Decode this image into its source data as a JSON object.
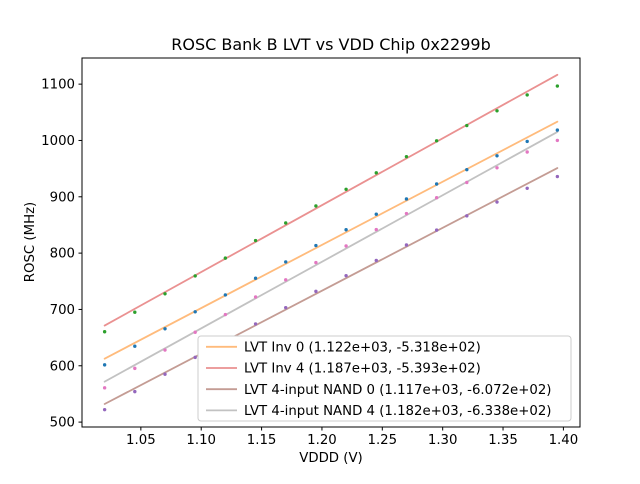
{
  "figure": {
    "background": "#ffffff",
    "spine_color": "#000000",
    "text_color": "#000000"
  },
  "chart_data": {
    "type": "scatter",
    "title": "ROSC Bank B LVT vs VDD Chip 0x2299b",
    "xlabel": "VDDD (V)",
    "ylabel": "ROSC (MHz)",
    "xlim": [
      1.00125,
      1.41375
    ],
    "ylim": [
      491.3,
      1146.4
    ],
    "grid": false,
    "xticks": [
      1.05,
      1.1,
      1.15,
      1.2,
      1.25,
      1.3,
      1.35,
      1.4
    ],
    "xtick_labels": [
      "1.05",
      "1.10",
      "1.15",
      "1.20",
      "1.25",
      "1.30",
      "1.35",
      "1.40"
    ],
    "yticks": [
      500,
      600,
      700,
      800,
      900,
      1000,
      1100
    ],
    "ytick_labels": [
      "500",
      "600",
      "700",
      "800",
      "900",
      "1000",
      "1100"
    ],
    "x": [
      1.02,
      1.045,
      1.07,
      1.095,
      1.12,
      1.145,
      1.17,
      1.195,
      1.22,
      1.245,
      1.27,
      1.295,
      1.32,
      1.345,
      1.37,
      1.395
    ],
    "series": [
      {
        "label": "LVT Inv 0 (1.122e+03, -5.318e+02)",
        "fit_slope": 1122.0,
        "fit_intercept": -531.8,
        "line_color": "#ffbb7c",
        "point_color": "#1f77b4",
        "values": [
          601.6,
          634.7,
          665.7,
          695.8,
          725.8,
          755.4,
          784.4,
          813.5,
          841.5,
          869.1,
          896.1,
          922.7,
          948.2,
          972.8,
          998.3,
          1018.4
        ]
      },
      {
        "label": "LVT Inv 4 (1.187e+03, -5.393e+02)",
        "fit_slope": 1187.0,
        "fit_intercept": -539.3,
        "line_color": "#ea9191",
        "point_color": "#2ca02c",
        "values": [
          660.4,
          695.1,
          727.8,
          759.5,
          791.1,
          822.3,
          853.5,
          883.7,
          913.3,
          942.5,
          971.2,
          999.4,
          1026.5,
          1052.7,
          1080.9,
          1096.6
        ]
      },
      {
        "label": "LVT 4-input NAND 0 (1.117e+03, -6.072e+02)",
        "fit_slope": 1117.0,
        "fit_intercept": -607.2,
        "line_color": "#c49c94",
        "point_color": "#9467bd",
        "values": [
          522.1,
          554.1,
          585.0,
          614.9,
          644.8,
          674.3,
          703.2,
          732.1,
          760.0,
          787.0,
          814.4,
          840.8,
          866.2,
          890.7,
          915.1,
          936.0
        ]
      },
      {
        "label": "LVT 4-input NAND 4 (1.182e+03, -6.338e+02)",
        "fit_slope": 1182.0,
        "fit_intercept": -633.8,
        "line_color": "#c2c2c2",
        "point_color": "#e377c2",
        "values": [
          560.8,
          595.4,
          627.9,
          659.5,
          691.0,
          722.1,
          752.6,
          783.2,
          812.7,
          841.8,
          870.3,
          898.4,
          925.4,
          951.5,
          979.5,
          1000.1
        ]
      }
    ],
    "legend": {
      "location": "lower right",
      "border_color": "#cccccc",
      "background": "#ffffff"
    }
  }
}
